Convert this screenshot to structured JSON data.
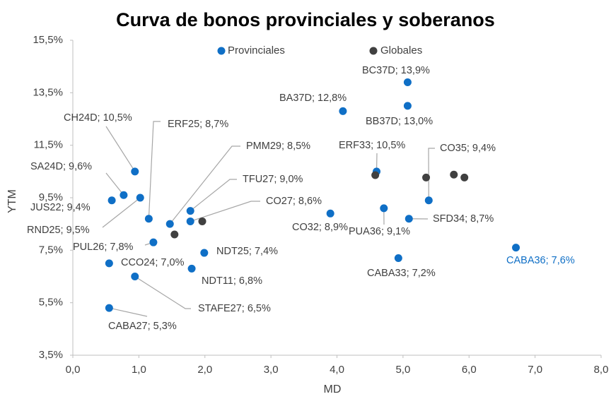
{
  "chart_data": {
    "type": "scatter",
    "title": "Curva de bonos provinciales y soberanos",
    "x_label": "MD",
    "y_label": "YTM",
    "xlim": [
      0,
      8
    ],
    "ylim": [
      3.5,
      15.5
    ],
    "xticks": [
      {
        "value": 0,
        "label": "0,0"
      },
      {
        "value": 1,
        "label": "1,0"
      },
      {
        "value": 2,
        "label": "2,0"
      },
      {
        "value": 3,
        "label": "3,0"
      },
      {
        "value": 4,
        "label": "4,0"
      },
      {
        "value": 5,
        "label": "5,0"
      },
      {
        "value": 6,
        "label": "6,0"
      },
      {
        "value": 7,
        "label": "7,0"
      },
      {
        "value": 8,
        "label": "8,0"
      }
    ],
    "yticks": [
      {
        "value": 3.5,
        "label": "3,5%"
      },
      {
        "value": 5.5,
        "label": "5,5%"
      },
      {
        "value": 7.5,
        "label": "7,5%"
      },
      {
        "value": 9.5,
        "label": "9,5%"
      },
      {
        "value": 11.5,
        "label": "11,5%"
      },
      {
        "value": 13.5,
        "label": "13,5%"
      },
      {
        "value": 15.5,
        "label": "15,5%"
      }
    ],
    "grid": false,
    "series": [
      {
        "name": "Provinciales",
        "color": "#0f6fc6",
        "x": [
          0.94,
          0.77,
          0.59,
          1.15,
          1.02,
          1.47,
          1.78,
          1.78,
          1.22,
          1.99,
          0.55,
          1.8,
          0.94,
          0.55,
          4.09,
          5.07,
          5.07,
          4.6,
          5.39,
          3.9,
          4.71,
          5.09,
          4.93,
          6.71
        ],
        "values": [
          10.5,
          9.6,
          9.4,
          8.7,
          9.5,
          8.5,
          9.0,
          8.6,
          7.8,
          7.4,
          7.0,
          6.8,
          6.5,
          5.3,
          12.8,
          13.9,
          13.0,
          10.5,
          9.4,
          8.9,
          9.1,
          8.7,
          7.2,
          7.6
        ],
        "labels": [
          "CH24D; 10,5%",
          "SA24D; 9,6%",
          "JUS22; 9,4%",
          "ERF25; 8,7%",
          "RND25; 9,5%",
          "PMM29; 8,5%",
          "TFU27; 9,0%",
          "CO27; 8,6%",
          "PUL26; 7,8%",
          "NDT25; 7,4%",
          "CCO24; 7,0%",
          "NDT11; 6,8%",
          "STAFE27; 6,5%",
          "CABA27; 5,3%",
          "BA37D; 12,8%",
          "BC37D; 13,9%",
          "BB37D; 13,0%",
          "ERF33; 10,5%",
          "CO35; 9,4%",
          "CO32; 8,9%",
          "PUA36; 9,1%",
          "SFD34; 8,7%",
          "CABA33; 7,2%",
          "CABA36; 7,6%"
        ],
        "highlight_label": 23
      },
      {
        "name": "Globales",
        "color": "#404040",
        "x": [
          1.54,
          1.96,
          4.58,
          5.35,
          5.77,
          5.93
        ],
        "values": [
          8.1,
          8.6,
          10.36,
          10.27,
          10.38,
          10.27
        ]
      }
    ]
  }
}
